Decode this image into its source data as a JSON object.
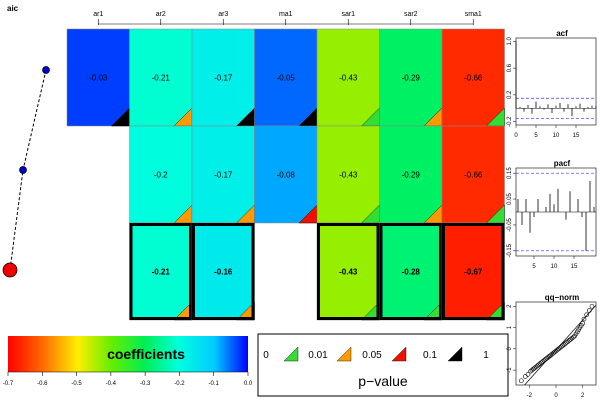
{
  "chart_data": [
    {
      "type": "scatter",
      "title": "aic",
      "x": [
        1,
        1,
        1
      ],
      "y": [
        3,
        2,
        1
      ],
      "connected": true,
      "line_style": "dashed",
      "marker_colors": [
        "#0000cc",
        "#0000cc",
        "#ee0000"
      ]
    },
    {
      "type": "heatmap",
      "columns": [
        "ar1",
        "ar2",
        "ar3",
        "ma1",
        "sar1",
        "sar2",
        "sma1"
      ],
      "rows": [
        {
          "labels": [
            "-0.03",
            "-0.21",
            "-0.17",
            "-0.05",
            "-0.43",
            "-0.29",
            "-0.66"
          ],
          "values": [
            -0.03,
            -0.21,
            -0.17,
            -0.05,
            -0.43,
            -0.29,
            -0.66
          ],
          "pvalue_class": [
            3,
            1,
            3,
            3,
            0,
            1,
            0
          ],
          "highlight": false
        },
        {
          "labels": [
            null,
            "-0.2",
            "-0.17",
            "-0.08",
            "-0.43",
            "-0.29",
            "-0.66"
          ],
          "values": [
            null,
            -0.2,
            -0.17,
            -0.08,
            -0.43,
            -0.29,
            -0.66
          ],
          "pvalue_class": [
            null,
            1,
            1,
            2,
            0,
            1,
            0
          ],
          "highlight": false
        },
        {
          "labels": [
            null,
            "-0.21",
            "-0.16",
            null,
            "-0.43",
            "-0.28",
            "-0.67"
          ],
          "values": [
            null,
            -0.21,
            -0.16,
            null,
            -0.43,
            -0.28,
            -0.67
          ],
          "pvalue_class": [
            null,
            1,
            1,
            null,
            0,
            0,
            0
          ],
          "highlight": true
        }
      ]
    },
    {
      "type": "bar",
      "title": "acf",
      "lags": [
        0,
        1,
        2,
        3,
        4,
        5,
        6,
        7,
        8,
        9,
        10,
        11,
        12,
        13,
        14,
        15,
        16,
        17,
        18,
        19,
        20
      ],
      "values": [
        1.0,
        0.02,
        -0.05,
        0.05,
        -0.08,
        0.1,
        0.03,
        -0.02,
        0.06,
        -0.07,
        0.04,
        0.08,
        -0.05,
        0.06,
        -0.12,
        0.03,
        0.07,
        -0.05,
        0.02,
        0.04,
        0.03
      ],
      "confidence_bound": 0.15,
      "xticks": [
        "0",
        "5",
        "10",
        "15"
      ],
      "yticks": [
        "-0.2",
        "0.2",
        "0.6",
        "1.0"
      ],
      "xlim": [
        0,
        20
      ],
      "ylim": [
        -0.25,
        1.05
      ]
    },
    {
      "type": "bar",
      "title": "pacf",
      "lags": [
        1,
        2,
        3,
        4,
        5,
        6,
        7,
        8,
        9,
        10,
        11,
        12,
        13,
        14,
        15,
        16,
        17,
        18,
        19,
        20
      ],
      "values": [
        0.05,
        -0.05,
        0.05,
        -0.08,
        -0.02,
        0.05,
        0.0,
        0.02,
        0.07,
        0.03,
        0.09,
        0.0,
        -0.03,
        0.08,
        0.0,
        0.05,
        -0.02,
        -0.15,
        0.12,
        0.02
      ],
      "confidence_bound": 0.15,
      "xticks": [
        "5",
        "10",
        "15"
      ],
      "yticks": [
        "-0.15",
        "-0.05",
        "0.05",
        "0.15"
      ],
      "xlim": [
        0.5,
        20.5
      ],
      "ylim": [
        -0.17,
        0.17
      ]
    },
    {
      "type": "scatter",
      "title": "qq−norm",
      "x": [
        -2.6,
        -2.3,
        -2.1,
        -1.9,
        -1.8,
        -1.7,
        -1.6,
        -1.5,
        -1.4,
        -1.3,
        -1.2,
        -1.1,
        -1.0,
        -0.9,
        -0.8,
        -0.7,
        -0.6,
        -0.5,
        -0.4,
        -0.3,
        -0.2,
        -0.1,
        0.0,
        0.1,
        0.2,
        0.3,
        0.4,
        0.5,
        0.6,
        0.7,
        0.8,
        0.9,
        1.0,
        1.1,
        1.2,
        1.3,
        1.4,
        1.5,
        1.6,
        1.7,
        1.8,
        1.9,
        2.0,
        2.1,
        2.3,
        2.5,
        2.7
      ],
      "y": [
        -1.5,
        -1.3,
        -1.2,
        -1.05,
        -1.0,
        -0.95,
        -0.9,
        -0.85,
        -0.8,
        -0.75,
        -0.7,
        -0.65,
        -0.6,
        -0.55,
        -0.5,
        -0.45,
        -0.4,
        -0.35,
        -0.3,
        -0.25,
        -0.2,
        -0.15,
        -0.1,
        -0.05,
        0.0,
        0.05,
        0.1,
        0.15,
        0.2,
        0.25,
        0.3,
        0.35,
        0.4,
        0.45,
        0.5,
        0.55,
        0.6,
        0.7,
        0.8,
        0.9,
        1.0,
        1.1,
        1.2,
        1.4,
        1.6,
        1.8,
        2.0
      ],
      "reference_line": {
        "intercept": -0.05,
        "slope": 0.7
      },
      "xticks": [
        "-2",
        "0",
        "2"
      ],
      "yticks": [
        "-1",
        "0",
        "1",
        "2"
      ],
      "xlim": [
        -3.0,
        3.0
      ],
      "ylim": [
        -1.7,
        2.2
      ]
    }
  ],
  "colorbar": {
    "label": "coefficients",
    "range": [
      -0.7,
      0.0
    ],
    "ticks": [
      "-0.7",
      "-0.6",
      "-0.5",
      "-0.4",
      "-0.3",
      "-0.2",
      "-0.1",
      "0.0"
    ]
  },
  "pvalue_legend": {
    "title": "p−value",
    "labels": [
      "0",
      "0.01",
      "0.05",
      "0.1",
      "1"
    ],
    "colors": [
      "#33dd33",
      "#ff9900",
      "#ee1100",
      "#000000"
    ]
  }
}
